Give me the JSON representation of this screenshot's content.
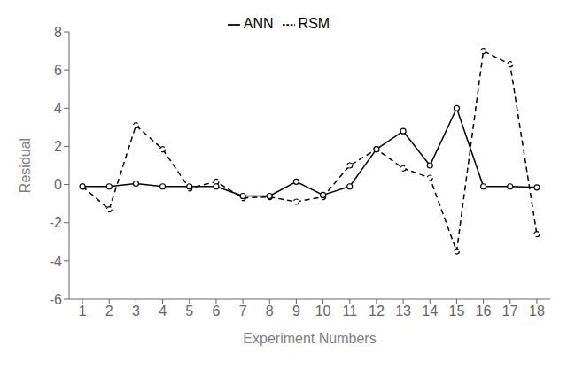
{
  "chart_data": {
    "type": "line",
    "xlabel": "Experiment Numbers",
    "ylabel": "Residual",
    "x": [
      1,
      2,
      3,
      4,
      5,
      6,
      7,
      8,
      9,
      10,
      11,
      12,
      13,
      14,
      15,
      16,
      17,
      18
    ],
    "series": [
      {
        "name": "RSM",
        "color": "#000000",
        "line_style": "dashed",
        "marker": "circle",
        "values": [
          -0.1,
          -1.3,
          3.1,
          1.85,
          -0.2,
          0.15,
          -0.7,
          -0.65,
          -0.9,
          -0.65,
          1.0,
          1.85,
          0.85,
          0.35,
          -3.5,
          7.0,
          6.3,
          -2.6
        ]
      },
      {
        "name": "ANN",
        "color": "#000000",
        "line_style": "solid",
        "marker": "circle",
        "values": [
          -0.1,
          -0.1,
          0.05,
          -0.1,
          -0.1,
          -0.1,
          -0.6,
          -0.6,
          0.15,
          -0.55,
          -0.1,
          1.85,
          2.8,
          1.0,
          4.0,
          -0.1,
          -0.1,
          -0.15
        ]
      }
    ],
    "xlim": [
      0.5,
      18.5
    ],
    "xticks": [
      1,
      2,
      3,
      4,
      5,
      6,
      7,
      8,
      9,
      10,
      11,
      12,
      13,
      14,
      15,
      16,
      17,
      18
    ],
    "ylim": [
      -6,
      8
    ],
    "yticks": [
      -6,
      -4,
      -2,
      0,
      2,
      4,
      6,
      8
    ],
    "grid": false,
    "legend": "top"
  }
}
